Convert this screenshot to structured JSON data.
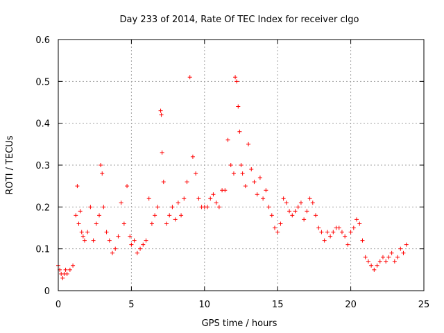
{
  "chart_data": {
    "type": "scatter",
    "title": "Day 233 of 2014, Rate Of TEC Index for receiver clgo",
    "xlabel": "GPS time / hours",
    "ylabel": "ROTI / TECUs",
    "xlim": [
      0,
      25
    ],
    "ylim": [
      0,
      0.6
    ],
    "x_ticks": [
      0,
      5,
      10,
      15,
      20,
      25
    ],
    "x_tick_labels": [
      "0",
      "5",
      "10",
      "15",
      "20",
      "25"
    ],
    "y_ticks": [
      0,
      0.1,
      0.2,
      0.3,
      0.4,
      0.5,
      0.6
    ],
    "y_tick_labels": [
      "0",
      "0.1",
      "0.2",
      "0.3",
      "0.4",
      "0.5",
      "0.6"
    ],
    "grid": true,
    "marker": "plus",
    "color": "#ff0000",
    "series": [
      {
        "x": [
          0.0,
          0.1,
          0.2,
          0.3,
          0.4,
          0.5,
          0.6,
          0.8,
          1.0,
          1.2,
          1.3,
          1.4,
          1.5,
          1.6,
          1.7,
          1.8,
          2.0,
          2.2,
          2.4,
          2.6,
          2.8,
          2.9,
          3.0,
          3.1,
          3.3,
          3.5,
          3.7,
          3.9,
          4.1,
          4.3,
          4.5,
          4.7,
          4.9,
          5.0,
          5.2,
          5.4,
          5.6,
          5.8,
          6.0,
          6.2,
          6.4,
          6.6,
          6.8,
          7.0,
          7.05,
          7.1,
          7.2,
          7.4,
          7.6,
          7.8,
          8.0,
          8.2,
          8.4,
          8.6,
          8.8,
          9.0,
          9.2,
          9.4,
          9.6,
          9.8,
          10.0,
          10.2,
          10.4,
          10.6,
          10.8,
          11.0,
          11.2,
          11.4,
          11.6,
          11.8,
          12.0,
          12.1,
          12.2,
          12.3,
          12.4,
          12.5,
          12.6,
          12.8,
          13.0,
          13.2,
          13.4,
          13.6,
          13.8,
          14.0,
          14.2,
          14.4,
          14.6,
          14.8,
          15.0,
          15.2,
          15.4,
          15.6,
          15.8,
          16.0,
          16.2,
          16.4,
          16.6,
          16.8,
          17.0,
          17.2,
          17.4,
          17.6,
          17.8,
          18.0,
          18.2,
          18.4,
          18.6,
          18.8,
          19.0,
          19.2,
          19.4,
          19.6,
          19.8,
          20.0,
          20.2,
          20.4,
          20.6,
          20.8,
          21.0,
          21.2,
          21.4,
          21.6,
          21.8,
          22.0,
          22.2,
          22.4,
          22.6,
          22.8,
          23.0,
          23.2,
          23.4,
          23.6,
          23.8
        ],
        "y": [
          0.06,
          0.05,
          0.04,
          0.03,
          0.04,
          0.05,
          0.04,
          0.05,
          0.06,
          0.18,
          0.25,
          0.16,
          0.19,
          0.14,
          0.13,
          0.12,
          0.14,
          0.2,
          0.12,
          0.16,
          0.18,
          0.3,
          0.28,
          0.2,
          0.14,
          0.12,
          0.09,
          0.1,
          0.13,
          0.21,
          0.16,
          0.25,
          0.13,
          0.11,
          0.12,
          0.09,
          0.1,
          0.11,
          0.12,
          0.22,
          0.16,
          0.18,
          0.2,
          0.43,
          0.42,
          0.33,
          0.26,
          0.16,
          0.18,
          0.2,
          0.17,
          0.21,
          0.18,
          0.22,
          0.26,
          0.51,
          0.32,
          0.28,
          0.22,
          0.2,
          0.2,
          0.2,
          0.22,
          0.23,
          0.21,
          0.2,
          0.24,
          0.24,
          0.36,
          0.3,
          0.28,
          0.51,
          0.5,
          0.44,
          0.38,
          0.3,
          0.28,
          0.25,
          0.35,
          0.29,
          0.26,
          0.23,
          0.27,
          0.22,
          0.24,
          0.2,
          0.18,
          0.15,
          0.14,
          0.16,
          0.22,
          0.21,
          0.19,
          0.18,
          0.19,
          0.2,
          0.21,
          0.17,
          0.19,
          0.22,
          0.21,
          0.18,
          0.15,
          0.14,
          0.12,
          0.14,
          0.13,
          0.14,
          0.15,
          0.15,
          0.14,
          0.13,
          0.11,
          0.14,
          0.15,
          0.17,
          0.16,
          0.12,
          0.08,
          0.07,
          0.06,
          0.05,
          0.06,
          0.07,
          0.08,
          0.07,
          0.08,
          0.09,
          0.07,
          0.08,
          0.1,
          0.09,
          0.11
        ]
      }
    ]
  }
}
